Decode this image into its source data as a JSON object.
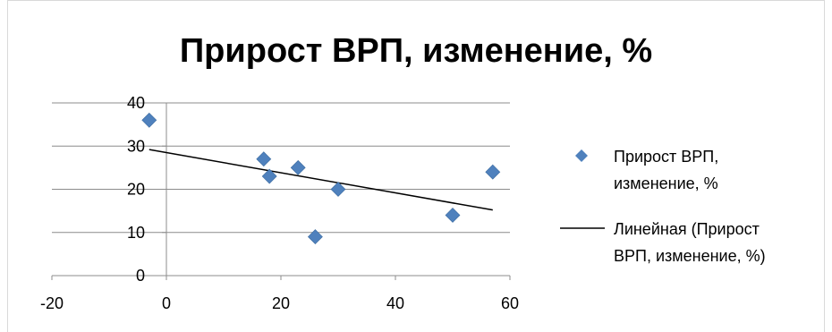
{
  "chart_data": {
    "type": "scatter",
    "title": "Прирост ВРП, изменение, %",
    "xlabel": "",
    "ylabel": "",
    "xlim": [
      -20,
      60
    ],
    "ylim": [
      0,
      40
    ],
    "x_ticks": [
      -20,
      0,
      20,
      40,
      60
    ],
    "y_ticks": [
      0,
      10,
      20,
      30,
      40
    ],
    "grid": "horizontal",
    "legend_position": "right",
    "series": [
      {
        "name": "Прирост ВРП, изменение, %",
        "marker": "diamond",
        "color": "#4f81bd",
        "points": [
          {
            "x": -3,
            "y": 36
          },
          {
            "x": 17,
            "y": 27
          },
          {
            "x": 18,
            "y": 23
          },
          {
            "x": 23,
            "y": 25
          },
          {
            "x": 26,
            "y": 9
          },
          {
            "x": 30,
            "y": 20
          },
          {
            "x": 50,
            "y": 14
          },
          {
            "x": 57,
            "y": 24
          }
        ]
      },
      {
        "name": "Линейная (Прирост ВРП, изменение, %)",
        "type": "trendline",
        "color": "#000000",
        "points": [
          {
            "x": -3,
            "y": 29.2
          },
          {
            "x": 57,
            "y": 15.2
          }
        ]
      }
    ],
    "legend": [
      {
        "label_lines": [
          "Прирост ВРП,",
          "изменение, %"
        ],
        "marker": "diamond"
      },
      {
        "label_lines": [
          "Линейная (Прирост",
          "ВРП, изменение, %)"
        ],
        "marker": "line"
      }
    ]
  }
}
